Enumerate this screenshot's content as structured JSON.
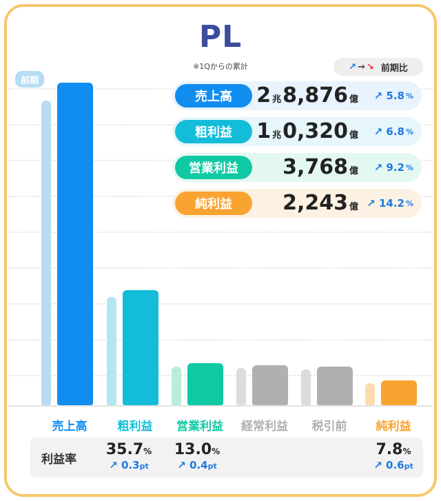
{
  "header": {
    "title": "PL",
    "subtitle": "※1Qからの累計"
  },
  "legend": {
    "up_icon": "↗",
    "flat_icon": "→",
    "down_icon": "↘",
    "label": "前期比"
  },
  "prev_tag": "前期",
  "metrics": [
    {
      "name": "売上高",
      "cho": "2",
      "cho_unit": "兆",
      "oku": "8,876",
      "unit": "億",
      "arrow": "↗",
      "change": "5.8",
      "pct": "%",
      "color": "#118df0",
      "bg": "#e9f3fd"
    },
    {
      "name": "粗利益",
      "cho": "1",
      "cho_unit": "兆",
      "oku": "0,320",
      "unit": "億",
      "arrow": "↗",
      "change": "6.8",
      "pct": "%",
      "color": "#13bdd9",
      "bg": "#e6f6fa"
    },
    {
      "name": "営業利益",
      "cho": "",
      "cho_unit": "",
      "oku": "3,768",
      "unit": "億",
      "arrow": "↗",
      "change": "9.2",
      "pct": "%",
      "color": "#0fc9a4",
      "bg": "#e4f8f2"
    },
    {
      "name": "純利益",
      "cho": "",
      "cho_unit": "",
      "oku": "2,243",
      "unit": "億",
      "arrow": "↗",
      "change": "14.2",
      "pct": "%",
      "color": "#f9a330",
      "bg": "#fdf1e3"
    }
  ],
  "chart_data": {
    "type": "bar",
    "categories": [
      "売上高",
      "粗利益",
      "営業利益",
      "経常利益",
      "税引前",
      "純利益"
    ],
    "series": [
      {
        "name": "前期",
        "values": [
          27297,
          9664,
          3450,
          3310,
          3210,
          1963
        ]
      },
      {
        "values": [
          28876,
          10320,
          3768,
          3560,
          3480,
          2243
        ]
      }
    ],
    "current_colors": [
      "#118df0",
      "#13bdd9",
      "#0fc9a4",
      "#b0b0b0",
      "#b0b0b0",
      "#f9a330"
    ],
    "previous_colors": [
      "#b7dcf4",
      "#b4e6f1",
      "#b8eddc",
      "#dcdcdc",
      "#dcdcdc",
      "#fbdcae"
    ],
    "label_colors": [
      "#118df0",
      "#13bdd9",
      "#0fc9a4",
      "#b0b0b0",
      "#b0b0b0",
      "#f9a330"
    ],
    "ylim": [
      0,
      30000
    ],
    "grid": true
  },
  "ratios": {
    "label": "利益率",
    "items": [
      {
        "value": "35.7",
        "unit": "%",
        "arrow": "↗",
        "change": "0.3",
        "change_unit": "pt"
      },
      {
        "value": "13.0",
        "unit": "%",
        "arrow": "↗",
        "change": "0.4",
        "change_unit": "pt"
      },
      {
        "value": "7.8",
        "unit": "%",
        "arrow": "↗",
        "change": "0.6",
        "change_unit": "pt"
      }
    ]
  }
}
